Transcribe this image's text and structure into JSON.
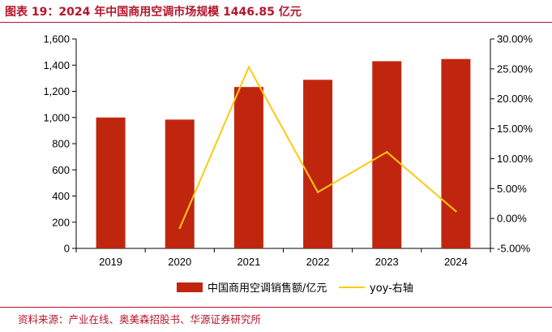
{
  "header": {
    "title": "图表 19：2024 年中国商用空调市场规模 1446.85 亿元"
  },
  "footer": {
    "source": "资料来源：产业在线、奥美森招股书、华源证券研究所"
  },
  "colors": {
    "bar": "#c0260e",
    "line": "#ffc90e",
    "accent": "#b5152b",
    "axis": "#000000"
  },
  "chart_data": {
    "type": "bar",
    "title": "2024 年中国商用空调市场规模 1446.85 亿元",
    "categories": [
      "2019",
      "2020",
      "2021",
      "2022",
      "2023",
      "2024"
    ],
    "series": [
      {
        "name": "中国商用空调销售额/亿元",
        "type": "bar",
        "axis": "left",
        "values": [
          1000,
          984,
          1233,
          1288,
          1430,
          1446.85
        ]
      },
      {
        "name": "yoy-右轴",
        "type": "line",
        "axis": "right",
        "values": [
          null,
          -1.6,
          25.3,
          4.4,
          11.1,
          1.2
        ]
      }
    ],
    "y_left": {
      "ylim": [
        0,
        1600
      ],
      "ticks": [
        0,
        200,
        400,
        600,
        800,
        1000,
        1200,
        1400,
        1600
      ],
      "tick_labels": [
        "0",
        "200",
        "400",
        "600",
        "800",
        "1,000",
        "1,200",
        "1,400",
        "1,600"
      ]
    },
    "y_right": {
      "ylim": [
        -5,
        30
      ],
      "ticks": [
        -5,
        0,
        5,
        10,
        15,
        20,
        25,
        30
      ],
      "tick_labels": [
        "-5.00%",
        "0.00%",
        "5.00%",
        "10.00%",
        "15.00%",
        "20.00%",
        "25.00%",
        "30.00%"
      ]
    },
    "legend": {
      "position": "bottom"
    },
    "grid": false
  }
}
